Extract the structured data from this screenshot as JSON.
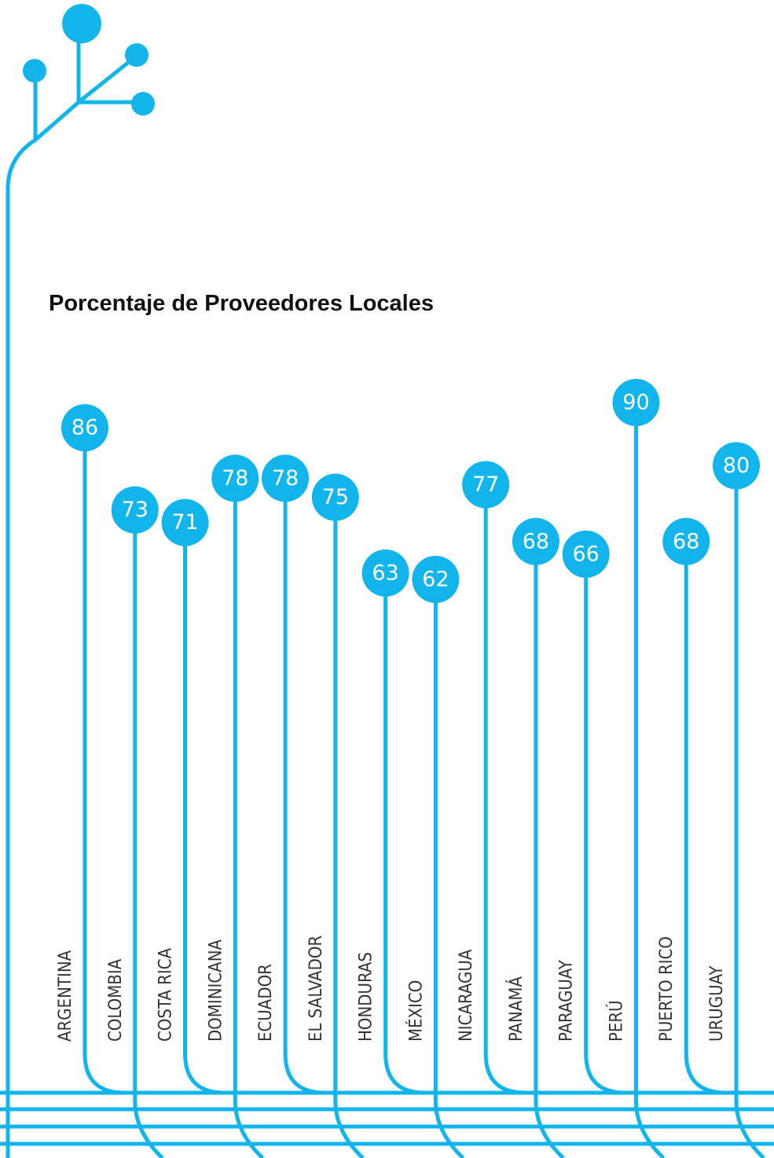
{
  "chart_data": {
    "type": "lollipop",
    "title": "Porcentaje de Proveedores Locales",
    "categories": [
      "ARGENTINA",
      "COLOMBIA",
      "COSTA RICA",
      "DOMINICANA",
      "ECUADOR",
      "EL SALVADOR",
      "HONDURAS",
      "MÉXICO",
      "NICARAGUA",
      "PANAMÁ",
      "PARAGUAY",
      "PERÚ",
      "PUERTO RICO",
      "URUGUAY"
    ],
    "values": [
      86,
      73,
      71,
      78,
      78,
      75,
      63,
      62,
      77,
      68,
      66,
      90,
      68,
      80
    ],
    "color": "#12b4ec"
  }
}
